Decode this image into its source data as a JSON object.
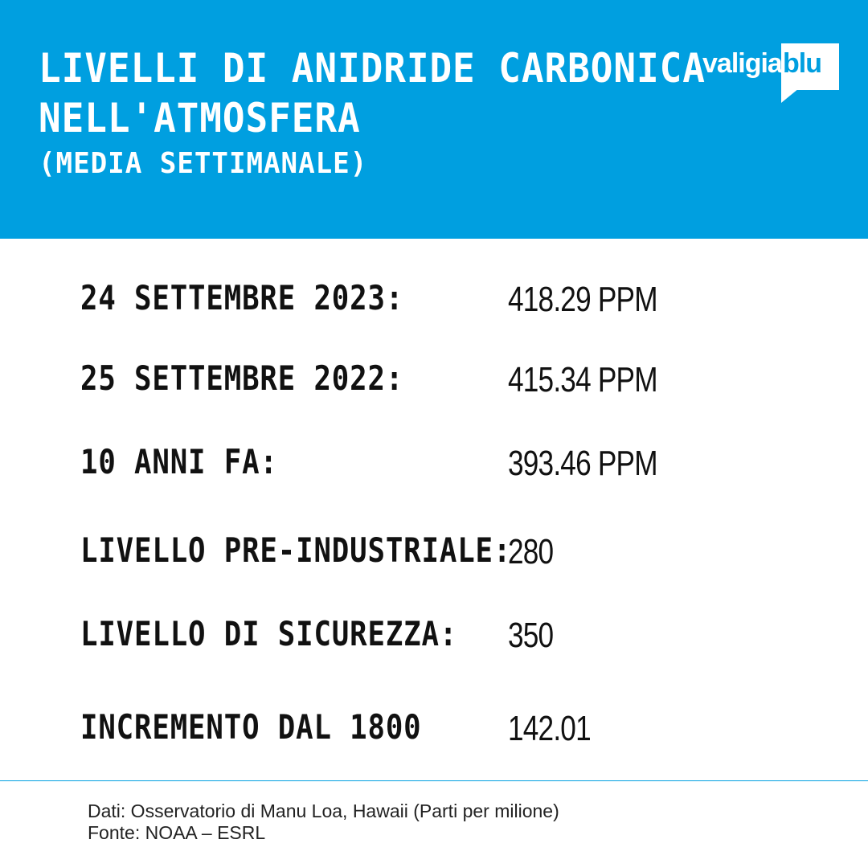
{
  "header": {
    "title_line1": "LIVELLI DI ANIDRIDE CARBONICA",
    "title_line2": "NELL'ATMOSFERA",
    "subtitle": "(MEDIA SETTIMANALE)",
    "background_color": "#009fe0"
  },
  "logo": {
    "text_part1": "valigia",
    "text_part2": "blu"
  },
  "rows": [
    {
      "label": "24 SETTEMBRE 2023:",
      "value": "418.29 PPM"
    },
    {
      "label": "25 SETTEMBRE 2022:",
      "value": "415.34 PPM"
    },
    {
      "label": "10 ANNI FA:",
      "value": "393.46 PPM"
    },
    {
      "label": "LIVELLO PRE-INDUSTRIALE:",
      "value": "280"
    },
    {
      "label": "LIVELLO DI SICUREZZA:",
      "value": "350"
    },
    {
      "label": "INCREMENTO DAL 1800",
      "value": "142.01"
    }
  ],
  "footer": {
    "line1": "Dati: Osservatorio di Manu Loa, Hawaii (Parti per milione)",
    "line2": "Fonte: NOAA – ESRL"
  }
}
